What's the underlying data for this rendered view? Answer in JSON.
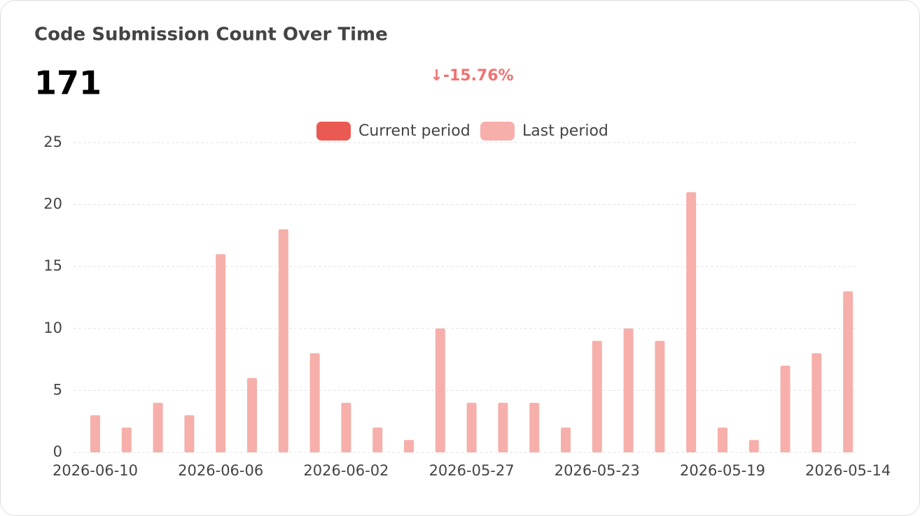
{
  "summary": {
    "total": 171,
    "change": "↓-15.76%"
  },
  "chart_data": {
    "type": "bar",
    "title": "Code Submission Count Over Time",
    "categories": [
      "2026-06-10",
      null,
      null,
      null,
      "2026-06-06",
      null,
      null,
      null,
      "2026-06-02",
      null,
      null,
      null,
      "2026-05-27",
      null,
      null,
      null,
      "2026-05-23",
      null,
      null,
      null,
      "2026-05-19",
      null,
      null,
      null,
      "2026-05-14"
    ],
    "series": [
      {
        "name": "Current period",
        "color": "#eb5a52",
        "values": [
          null,
          null,
          null,
          null,
          null,
          null,
          null,
          null,
          null,
          null,
          null,
          null,
          null,
          null,
          null,
          null,
          null,
          null,
          null,
          null,
          null,
          null,
          null,
          null,
          null
        ]
      },
      {
        "name": "Last period",
        "color": "#f6afaa",
        "values": [
          3,
          2,
          4,
          3,
          16,
          6,
          18,
          8,
          4,
          2,
          1,
          10,
          4,
          4,
          4,
          2,
          9,
          10,
          9,
          21,
          2,
          1,
          7,
          8,
          13
        ]
      }
    ],
    "ylim": [
      0,
      25
    ],
    "yticks": [
      0,
      5,
      10,
      15,
      20,
      25
    ],
    "grid": true,
    "legend": "top"
  }
}
